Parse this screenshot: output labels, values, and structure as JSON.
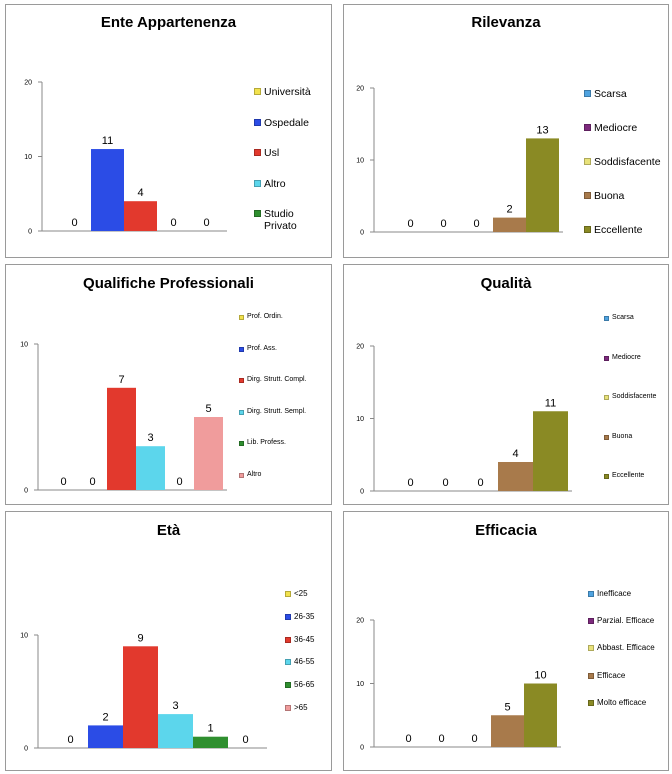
{
  "chart_data": [
    {
      "type": "bar",
      "title": "Ente Appartenenza",
      "ylim": [
        0,
        20
      ],
      "yticks": [
        0,
        10,
        20
      ],
      "series": [
        {
          "name": "Università",
          "value": 0,
          "color": "#f2e24d"
        },
        {
          "name": "Ospedale",
          "value": 11,
          "color": "#2b4ce6"
        },
        {
          "name": "Usl",
          "value": 4,
          "color": "#e2392d"
        },
        {
          "name": "Altro",
          "value": 0,
          "color": "#5cd6ec"
        },
        {
          "name": "Studio Privato",
          "value": 0,
          "color": "#2f8f2f"
        }
      ]
    },
    {
      "type": "bar",
      "title": "Rilevanza",
      "ylim": [
        0,
        20
      ],
      "yticks": [
        0,
        10,
        20
      ],
      "series": [
        {
          "name": "Scarsa",
          "value": 0,
          "color": "#4fa3e0"
        },
        {
          "name": "Mediocre",
          "value": 0,
          "color": "#7d2a7d"
        },
        {
          "name": "Soddisfacente",
          "value": 0,
          "color": "#e8e27a"
        },
        {
          "name": "Buona",
          "value": 2,
          "color": "#a87a4b"
        },
        {
          "name": "Eccellente",
          "value": 13,
          "color": "#8a8a24"
        }
      ]
    },
    {
      "type": "bar",
      "title": "Qualifiche Professionali",
      "ylim": [
        0,
        10
      ],
      "yticks": [
        0,
        10
      ],
      "series": [
        {
          "name": "Prof. Ordin.",
          "value": 0,
          "color": "#f2e24d"
        },
        {
          "name": "Prof. Ass.",
          "value": 0,
          "color": "#2b4ce6"
        },
        {
          "name": "Dirg. Strutt. Compl.",
          "value": 7,
          "color": "#e2392d"
        },
        {
          "name": "Dirg. Strutt. Sempl.",
          "value": 3,
          "color": "#5cd6ec"
        },
        {
          "name": "Lib. Profess.",
          "value": 0,
          "color": "#2f8f2f"
        },
        {
          "name": "Altro",
          "value": 5,
          "color": "#f09c9c"
        }
      ]
    },
    {
      "type": "bar",
      "title": "Qualità",
      "ylim": [
        0,
        20
      ],
      "yticks": [
        0,
        10,
        20
      ],
      "series": [
        {
          "name": "Scarsa",
          "value": 0,
          "color": "#4fa3e0"
        },
        {
          "name": "Mediocre",
          "value": 0,
          "color": "#7d2a7d"
        },
        {
          "name": "Soddisfacente",
          "value": 0,
          "color": "#e8e27a"
        },
        {
          "name": "Buona",
          "value": 4,
          "color": "#a87a4b"
        },
        {
          "name": "Eccellente",
          "value": 11,
          "color": "#8a8a24"
        }
      ]
    },
    {
      "type": "bar",
      "title": "Età",
      "ylim": [
        0,
        10
      ],
      "yticks": [
        0,
        10
      ],
      "series": [
        {
          "name": "<25",
          "value": 0,
          "color": "#f2e24d"
        },
        {
          "name": "26-35",
          "value": 2,
          "color": "#2b4ce6"
        },
        {
          "name": "36-45",
          "value": 9,
          "color": "#e2392d"
        },
        {
          "name": "46-55",
          "value": 3,
          "color": "#5cd6ec"
        },
        {
          "name": "56-65",
          "value": 1,
          "color": "#2f8f2f"
        },
        {
          "name": ">65",
          "value": 0,
          "color": "#f09c9c"
        }
      ]
    },
    {
      "type": "bar",
      "title": "Efficacia",
      "ylim": [
        0,
        20
      ],
      "yticks": [
        0,
        10,
        20
      ],
      "series": [
        {
          "name": "Inefficace",
          "value": 0,
          "color": "#4fa3e0"
        },
        {
          "name": "Parzial. Efficace",
          "value": 0,
          "color": "#7d2a7d"
        },
        {
          "name": "Abbast. Efficace",
          "value": 0,
          "color": "#e8e27a"
        },
        {
          "name": "Efficace",
          "value": 5,
          "color": "#a87a4b"
        },
        {
          "name": "Molto efficace",
          "value": 10,
          "color": "#8a8a24"
        }
      ]
    }
  ]
}
